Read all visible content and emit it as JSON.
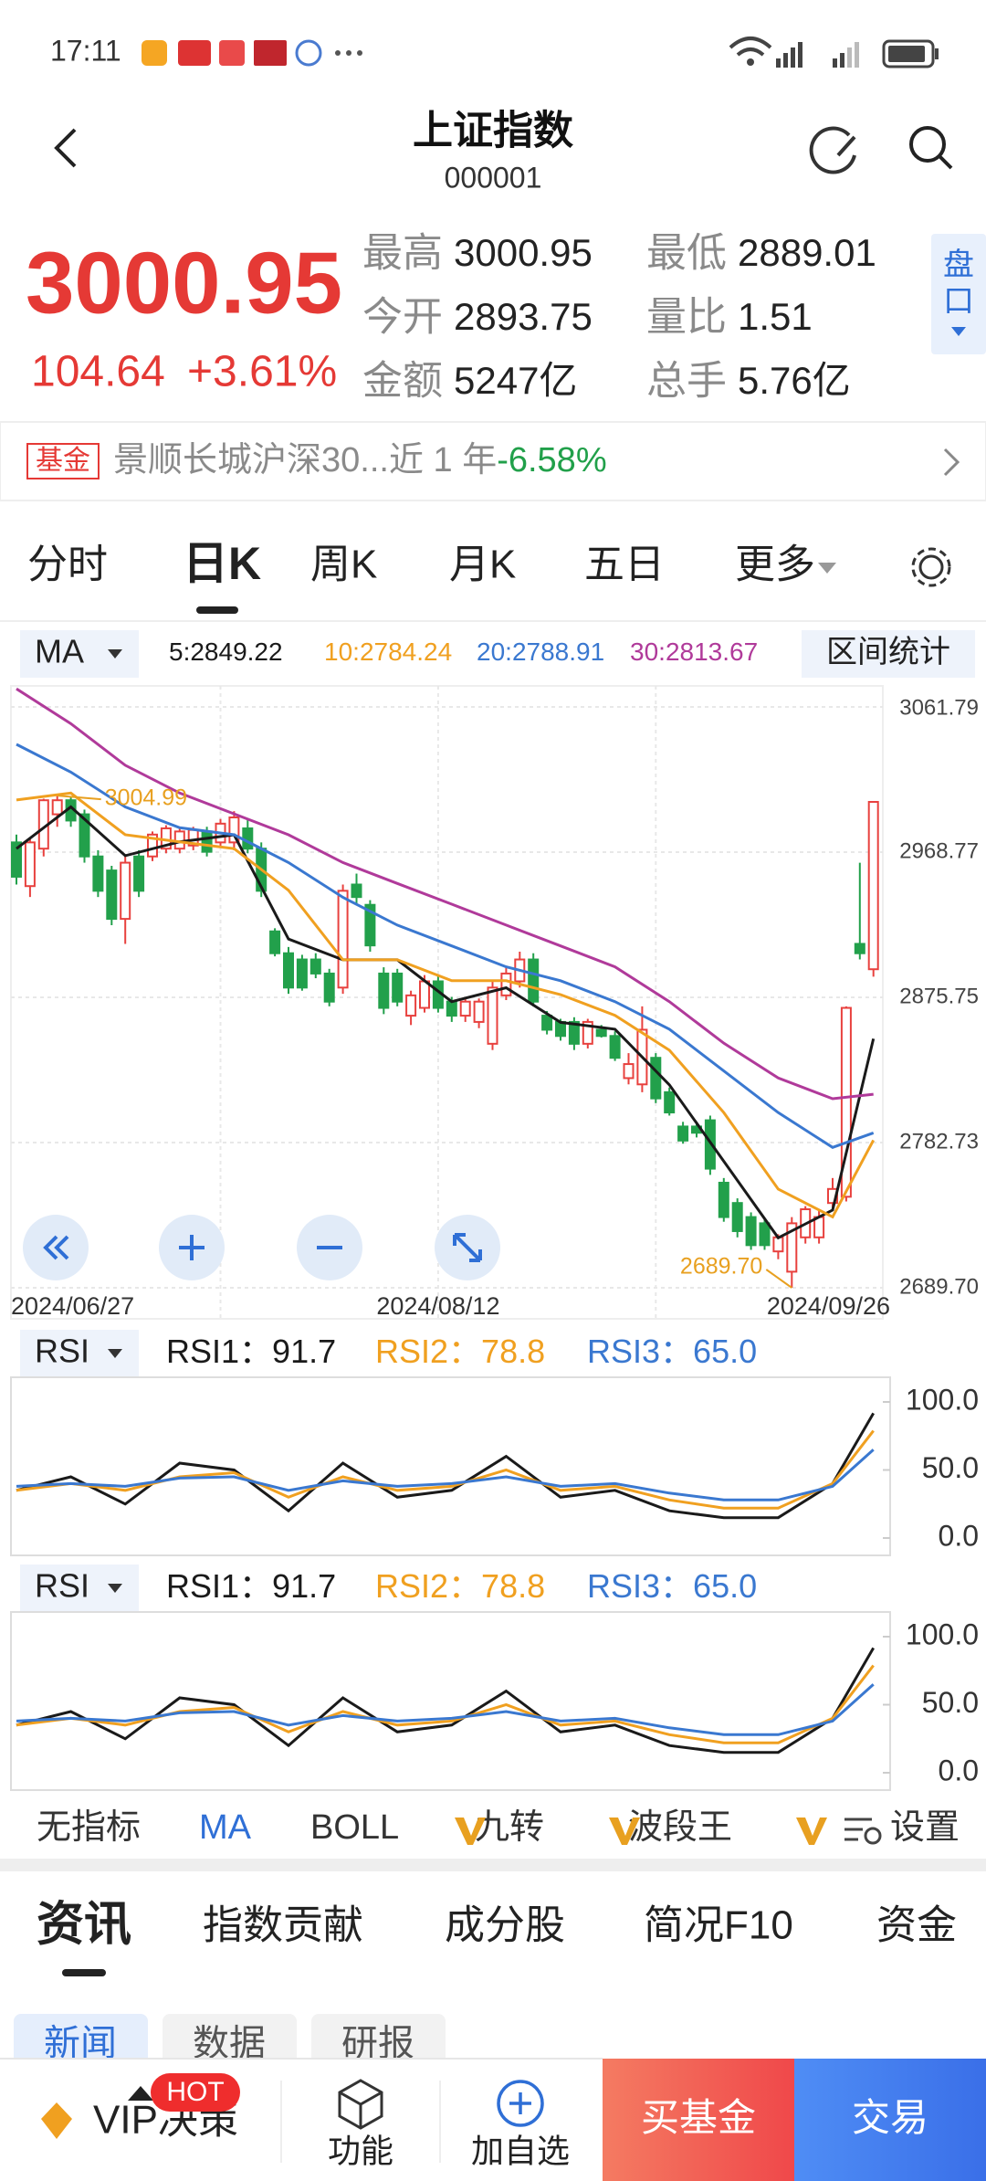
{
  "status_bar": {
    "time": "17:11"
  },
  "header": {
    "title": "上证指数",
    "code": "000001"
  },
  "quote": {
    "price": "3000.95",
    "change": "104.64",
    "change_pct": "+3.61%",
    "stats": [
      {
        "label": "最高",
        "value": "3000.95"
      },
      {
        "label": "最低",
        "value": "2889.01"
      },
      {
        "label": "今开",
        "value": "2893.75"
      },
      {
        "label": "量比",
        "value": "1.51"
      },
      {
        "label": "金额",
        "value": "5247亿"
      },
      {
        "label": "总手",
        "value": "5.76亿"
      }
    ],
    "side_button": [
      "盘",
      "口"
    ]
  },
  "fund_banner": {
    "tag": "基金",
    "text": "景顺长城沪深30...近 1 年",
    "return": "-6.58%"
  },
  "tabs": [
    "分时",
    "日K",
    "周K",
    "月K",
    "五日",
    "更多"
  ],
  "chart_data": [
    {
      "type": "candlestick",
      "indicator": "MA",
      "range_stats": "区间统计",
      "candles": [
        [
          2975,
          2980,
          2948,
          2953
        ],
        [
          2947,
          2978,
          2940,
          2975
        ],
        [
          2971,
          3003,
          2966,
          3002
        ],
        [
          2993,
          3004.99,
          2985,
          3002
        ],
        [
          3002,
          3004,
          2985,
          2989
        ],
        [
          2993,
          2996,
          2962,
          2966
        ],
        [
          2966,
          2970,
          2940,
          2944
        ],
        [
          2957,
          2960,
          2922,
          2926
        ],
        [
          2926,
          2966,
          2910,
          2962
        ],
        [
          2966,
          2970,
          2940,
          2944
        ],
        [
          2966,
          2982,
          2963,
          2980
        ],
        [
          2971,
          2986,
          2968,
          2984
        ],
        [
          2971,
          2984,
          2968,
          2982
        ],
        [
          2973,
          2985,
          2970,
          2983
        ],
        [
          2982,
          2985,
          2966,
          2969
        ],
        [
          2975,
          2990,
          2972,
          2987
        ],
        [
          2975,
          2995,
          2970,
          2991
        ],
        [
          2984,
          2990,
          2968,
          2971
        ],
        [
          2971,
          2975,
          2940,
          2944
        ],
        [
          2918,
          2920,
          2902,
          2904
        ],
        [
          2904,
          2908,
          2878,
          2882
        ],
        [
          2900,
          2903,
          2880,
          2882
        ],
        [
          2900,
          2904,
          2888,
          2891
        ],
        [
          2891,
          2894,
          2870,
          2873
        ],
        [
          2882,
          2948,
          2878,
          2944
        ],
        [
          2948,
          2955,
          2936,
          2940
        ],
        [
          2935,
          2938,
          2905,
          2909
        ],
        [
          2891,
          2895,
          2865,
          2869
        ],
        [
          2891,
          2894,
          2870,
          2873
        ],
        [
          2864,
          2880,
          2858,
          2877
        ],
        [
          2869,
          2890,
          2866,
          2886
        ],
        [
          2886,
          2890,
          2866,
          2869
        ],
        [
          2873,
          2876,
          2860,
          2864
        ],
        [
          2864,
          2876,
          2860,
          2873
        ],
        [
          2860,
          2875,
          2856,
          2873
        ],
        [
          2846,
          2886,
          2842,
          2882
        ],
        [
          2877,
          2895,
          2874,
          2891
        ],
        [
          2886,
          2905,
          2882,
          2900
        ],
        [
          2900,
          2904,
          2870,
          2873
        ],
        [
          2864,
          2867,
          2852,
          2855
        ],
        [
          2860,
          2862,
          2848,
          2851
        ],
        [
          2860,
          2863,
          2842,
          2846
        ],
        [
          2846,
          2862,
          2843,
          2860
        ],
        [
          2855,
          2858,
          2850,
          2851
        ],
        [
          2851,
          2854,
          2835,
          2837
        ],
        [
          2824,
          2840,
          2820,
          2833
        ],
        [
          2820,
          2870,
          2815,
          2855
        ],
        [
          2837,
          2840,
          2808,
          2811
        ],
        [
          2815,
          2818,
          2800,
          2802
        ],
        [
          2793,
          2796,
          2782,
          2784
        ],
        [
          2793,
          2796,
          2786,
          2789
        ],
        [
          2797,
          2800,
          2762,
          2766
        ],
        [
          2757,
          2760,
          2732,
          2735
        ],
        [
          2744,
          2747,
          2722,
          2726
        ],
        [
          2735,
          2738,
          2714,
          2717
        ],
        [
          2731,
          2734,
          2714,
          2717
        ],
        [
          2713,
          2724,
          2708,
          2722
        ],
        [
          2700,
          2735,
          2689.7,
          2731
        ],
        [
          2722,
          2742,
          2718,
          2740
        ],
        [
          2722,
          2740,
          2718,
          2735
        ],
        [
          2744,
          2760,
          2740,
          2753
        ],
        [
          2748,
          2870,
          2745,
          2869
        ],
        [
          2910,
          2962,
          2900,
          2904
        ],
        [
          2893.75,
          3000.95,
          2889.01,
          3000.95
        ]
      ],
      "up_color": "#e8413e",
      "down_color": "#22a04b",
      "ma_x": [
        0,
        4,
        8,
        12,
        16,
        20,
        24,
        28,
        32,
        36,
        40,
        44,
        48,
        52,
        56,
        60,
        63
      ],
      "series": [
        {
          "name": "5:",
          "color": "#1a1a1a",
          "values": [
            2971.0,
            2997.7,
            2966.5,
            2975.4,
            2979.9,
            2913.1,
            2899.8,
            2899.8,
            2873.0,
            2881.9,
            2859.7,
            2855.3,
            2819.7,
            2770.7,
            2721.7,
            2739.5,
            2849.22
          ]
        },
        {
          "name": "10:",
          "color": "#f0a020",
          "values": [
            3002.2,
            3006.6,
            2979.9,
            2975.4,
            2971.0,
            2944.3,
            2899.8,
            2899.8,
            2886.4,
            2886.4,
            2877.5,
            2864.2,
            2841.9,
            2801.9,
            2752.9,
            2735.1,
            2784.24
          ]
        },
        {
          "name": "20:",
          "color": "#3a78d0",
          "values": [
            3037.8,
            3020.0,
            2997.7,
            2984.4,
            2979.9,
            2962.1,
            2939.8,
            2922.0,
            2908.7,
            2895.3,
            2886.4,
            2873.0,
            2855.3,
            2828.6,
            2801.9,
            2779.6,
            2788.91
          ]
        },
        {
          "name": "30:",
          "color": "#b03a9a",
          "values": [
            3073.4,
            3051.1,
            3024.4,
            3006.6,
            2993.3,
            2979.9,
            2962.1,
            2948.7,
            2935.4,
            2922.0,
            2908.7,
            2895.3,
            2873.0,
            2846.4,
            2824.1,
            2810.8,
            2813.67
          ]
        }
      ],
      "ylim": [
        2689.7,
        3061.79
      ],
      "yticks": [
        3061.79,
        2968.77,
        2875.75,
        2782.73,
        {
          "value": 2689.7,
          "label": "2689.70"
        }
      ],
      "date_ticks": [
        {
          "value": 0,
          "label": "2024/06/27"
        },
        {
          "value": 31,
          "label": "2024/08/12"
        },
        {
          "value": 61,
          "label": "2024/09/26"
        }
      ],
      "xgrid": [
        15,
        31,
        47
      ],
      "annotations": [
        "3004.99",
        "2689.70"
      ],
      "grid": true
    },
    {
      "type": "line",
      "indicator": "RSI",
      "x": [
        0,
        4,
        8,
        12,
        16,
        20,
        24,
        28,
        32,
        36,
        40,
        44,
        48,
        52,
        56,
        60,
        63
      ],
      "series": [
        {
          "name": "RSI1：",
          "color": "#1a1a1a",
          "values": [
            35,
            45,
            25,
            55,
            50,
            20,
            55,
            30,
            35,
            60,
            30,
            35,
            20,
            15,
            15,
            40,
            91.7
          ]
        },
        {
          "name": "RSI2：",
          "color": "#f0a020",
          "values": [
            35,
            40,
            35,
            45,
            48,
            30,
            45,
            35,
            38,
            50,
            35,
            38,
            28,
            22,
            22,
            40,
            78.8
          ]
        },
        {
          "name": "RSI3：",
          "color": "#3a78d0",
          "values": [
            38,
            40,
            38,
            44,
            45,
            35,
            42,
            38,
            40,
            45,
            38,
            40,
            33,
            28,
            28,
            38,
            65.0
          ],
          "value_labels": [
            null,
            null,
            null,
            null,
            null,
            null,
            null,
            null,
            null,
            null,
            null,
            null,
            null,
            null,
            null,
            null,
            "65.0"
          ]
        }
      ],
      "ylim": [
        0,
        100
      ],
      "yticks": [
        {
          "value": 100,
          "label": "100.0"
        },
        {
          "value": 50,
          "label": "50.0"
        },
        {
          "value": 0,
          "label": "0.0"
        }
      ]
    }
  ],
  "indicator_bar": [
    "无指标",
    "MA",
    "BOLL",
    "九转",
    "波段王"
  ],
  "settings": "设置",
  "section_tabs": [
    "资讯",
    "指数贡献",
    "成分股",
    "简况F10",
    "资金"
  ],
  "sub_tabs": [
    "新闻",
    "数据",
    "研报"
  ],
  "bottom_bar": {
    "vip": "VIP决策",
    "hot": "HOT",
    "function": "功能",
    "watch": "加自选",
    "buy_fund": "买基金",
    "trade": "交易"
  }
}
